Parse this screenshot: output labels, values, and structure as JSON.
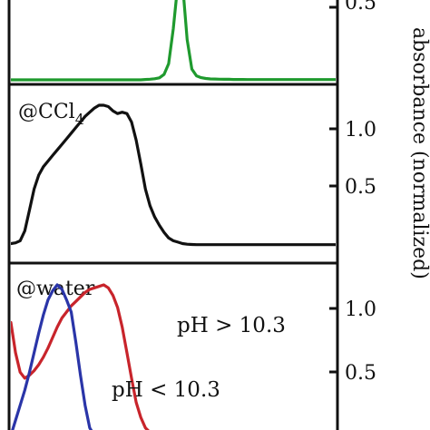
{
  "axis_title": "absorbance (normalized)",
  "colors": {
    "green": "#1f9a2e",
    "black": "#111111",
    "red": "#c8242b",
    "blue": "#2a35a8"
  },
  "chart_data": {
    "type": "line",
    "title": "",
    "xlabel": "",
    "ylabel": "absorbance (normalized)",
    "x": [
      0,
      1,
      2,
      3,
      4,
      5,
      6,
      7,
      8,
      9,
      10,
      11,
      12,
      13,
      14,
      15,
      16,
      17,
      18,
      19,
      20,
      21,
      22,
      23,
      24,
      25,
      26,
      27,
      28,
      29,
      30,
      31,
      32,
      33,
      34,
      35,
      36,
      37,
      38,
      39,
      40,
      41,
      42,
      43,
      44,
      45,
      46,
      47,
      48,
      49,
      50,
      51,
      52,
      53,
      54,
      55,
      56,
      57,
      58,
      59,
      60,
      61,
      62,
      63,
      64,
      65,
      66,
      67,
      68,
      69,
      70
    ],
    "panels": [
      {
        "label": "",
        "yticks": [
          "0.5"
        ],
        "ylim": [
          0,
          0.6
        ],
        "series": [
          {
            "name": "",
            "color": "#1f9a2e",
            "values": [
              0,
              0,
              0,
              0,
              0,
              0,
              0,
              0,
              0,
              0,
              0,
              0,
              0,
              0,
              0,
              0,
              0,
              0,
              0,
              0,
              0,
              0,
              0,
              0,
              0,
              0,
              0,
              0,
              0,
              0.003,
              0.005,
              0.008,
              0.015,
              0.04,
              0.12,
              0.38,
              0.72,
              0.72,
              0.3,
              0.08,
              0.03,
              0.016,
              0.01,
              0.007,
              0.006,
              0.005,
              0.004,
              0.004,
              0.003,
              0.003,
              0.003,
              0.002,
              0.002,
              0.002,
              0.002,
              0.002,
              0.002,
              0.002,
              0.002,
              0.002,
              0.002,
              0.002,
              0.002,
              0.002,
              0.002,
              0.002,
              0.002,
              0.002,
              0.002,
              0.002,
              0.002
            ]
          }
        ]
      },
      {
        "label": "@CCl",
        "label_sub": "4",
        "yticks": [
          "1.0",
          "0.5"
        ],
        "ylim": [
          0,
          1.1
        ],
        "series": [
          {
            "name": "",
            "color": "#111111",
            "values": [
              0.01,
              0.015,
              0.03,
              0.1,
              0.25,
              0.4,
              0.5,
              0.56,
              0.6,
              0.64,
              0.68,
              0.72,
              0.76,
              0.8,
              0.84,
              0.88,
              0.92,
              0.95,
              0.98,
              1.0,
              1.0,
              0.99,
              0.96,
              0.94,
              0.95,
              0.94,
              0.88,
              0.75,
              0.58,
              0.4,
              0.28,
              0.2,
              0.14,
              0.09,
              0.05,
              0.03,
              0.02,
              0.01,
              0.005,
              0.003,
              0.002,
              0.002,
              0.002,
              0.002,
              0.002,
              0.002,
              0.002,
              0.002,
              0.002,
              0.002,
              0.002,
              0.002,
              0.002,
              0.002,
              0.002,
              0.002,
              0.002,
              0.002,
              0.002,
              0.002,
              0.002,
              0.002,
              0.002,
              0.002,
              0.002,
              0.002,
              0.002,
              0.002,
              0.002,
              0.002,
              0.002
            ]
          }
        ]
      },
      {
        "label": "@water",
        "yticks": [
          "1.0",
          "0.5"
        ],
        "ylim": [
          0,
          1.1
        ],
        "series": [
          {
            "name": "pH > 10.3",
            "color": "#c8242b",
            "values": [
              0.75,
              0.55,
              0.42,
              0.38,
              0.4,
              0.43,
              0.47,
              0.52,
              0.58,
              0.65,
              0.72,
              0.78,
              0.82,
              0.86,
              0.89,
              0.92,
              0.95,
              0.97,
              0.98,
              0.99,
              1.0,
              0.98,
              0.93,
              0.85,
              0.72,
              0.55,
              0.38,
              0.22,
              0.12,
              0.05,
              0.02,
              0.01,
              0.005,
              0.003,
              0.002,
              0.002,
              0.002,
              0.002,
              0.002,
              0.002,
              0.002,
              0.002,
              0.002,
              0.002,
              0.002,
              0.002,
              0.002,
              0.002,
              0.002,
              0.002,
              0.002,
              0.002,
              0.002,
              0.002,
              0.002,
              0.002,
              0.002,
              0.002,
              0.002,
              0.002,
              0.002,
              0.002,
              0.002,
              0.002,
              0.002,
              0.002,
              0.002,
              0.002,
              0.002,
              0.002,
              0.002
            ]
          },
          {
            "name": "pH < 10.3",
            "color": "#2a35a8",
            "values": [
              0.0,
              0.1,
              0.2,
              0.3,
              0.42,
              0.55,
              0.68,
              0.8,
              0.9,
              0.96,
              1.0,
              0.97,
              0.9,
              0.82,
              0.62,
              0.4,
              0.2,
              0.05,
              0.0,
              0.0,
              0.0,
              0.0,
              0.0,
              0.0,
              0.0,
              0.0,
              0.0,
              0.0,
              0.0,
              0.0,
              0.0,
              0.0,
              0.0,
              0.0,
              0.0,
              0.0,
              0.0,
              0.0,
              0.0,
              0.0,
              0.0,
              0.0,
              0.0,
              0.0,
              0.0,
              0.0,
              0.0,
              0.0,
              0.0,
              0.0,
              0.0,
              0.0,
              0.0,
              0.0,
              0.0,
              0.0,
              0.0,
              0.0,
              0.0,
              0.0,
              0.0,
              0.0,
              0.0,
              0.0,
              0.0,
              0.0,
              0.0,
              0.0,
              0.0,
              0.0,
              0.0
            ]
          }
        ]
      }
    ],
    "grid": false,
    "legend": "inline labels"
  }
}
